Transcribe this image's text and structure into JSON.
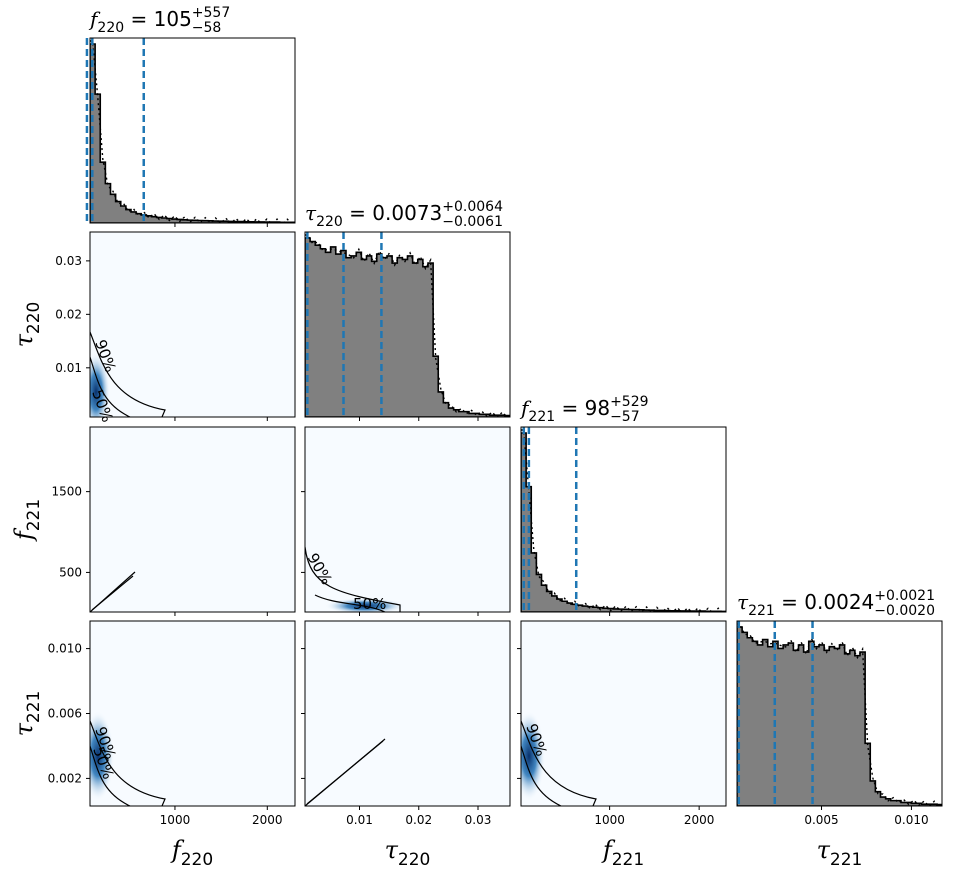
{
  "chart_data": {
    "type": "corner",
    "parameters": [
      {
        "symbol": "f",
        "sub": "220",
        "title_value": "105",
        "err_plus": "+557",
        "err_minus": "−58",
        "range": [
          80,
          2300
        ],
        "quantiles": [
          105,
          47,
          662
        ],
        "ticks": [
          "1000",
          "2000"
        ],
        "tick_values": [
          1000,
          2000
        ]
      },
      {
        "symbol": "τ",
        "sub": "220",
        "title_value": "0.0073",
        "err_plus": "+0.0064",
        "err_minus": "−0.0061",
        "range": [
          0.0008,
          0.0354
        ],
        "quantiles": [
          0.0073,
          0.0012,
          0.0137
        ],
        "ticks": [
          "0.01",
          "0.02",
          "0.03"
        ],
        "tick_values": [
          0.01,
          0.02,
          0.03
        ]
      },
      {
        "symbol": "f",
        "sub": "221",
        "title_value": "98",
        "err_plus": "+529",
        "err_minus": "−57",
        "range": [
          10,
          2300
        ],
        "quantiles": [
          98,
          41,
          627
        ],
        "ticks": [
          "500",
          "1500"
        ],
        "tick_values": [
          500,
          1500
        ],
        "x_ticks": [
          "1000",
          "2000"
        ],
        "x_tick_values": [
          1000,
          2000
        ]
      },
      {
        "symbol": "τ",
        "sub": "221",
        "title_value": "0.0024",
        "err_plus": "+0.0021",
        "err_minus": "−0.0020",
        "range": [
          0.0003,
          0.0117
        ],
        "quantiles": [
          0.0024,
          0.0004,
          0.0045
        ],
        "ticks": [
          "0.002",
          "0.006",
          "0.010"
        ],
        "tick_values": [
          0.002,
          0.006,
          0.01
        ],
        "x_ticks": [
          "0.005",
          "0.010"
        ],
        "x_tick_values": [
          0.005,
          0.01
        ]
      }
    ],
    "title_sep": " = ",
    "histograms": [
      [
        1.0,
        0.72,
        0.34,
        0.22,
        0.16,
        0.12,
        0.095,
        0.075,
        0.062,
        0.052,
        0.045,
        0.04,
        0.035,
        0.031,
        0.028,
        0.025,
        0.022,
        0.02,
        0.018,
        0.016,
        0.015,
        0.014,
        0.013,
        0.012,
        0.011,
        0.01,
        0.01,
        0.009,
        0.008,
        0.008,
        0.007,
        0.007,
        0.006,
        0.006,
        0.005,
        0.005,
        0.005,
        0.004,
        0.004,
        0.004
      ],
      [
        1.0,
        0.98,
        0.96,
        0.94,
        0.92,
        0.95,
        0.91,
        0.93,
        0.89,
        0.9,
        0.92,
        0.88,
        0.9,
        0.87,
        0.91,
        0.89,
        0.9,
        0.86,
        0.89,
        0.88,
        0.9,
        0.86,
        0.88,
        0.84,
        0.86,
        0.34,
        0.14,
        0.08,
        0.05,
        0.04,
        0.03,
        0.03,
        0.02,
        0.02,
        0.015,
        0.015,
        0.01,
        0.01,
        0.01,
        0.008
      ],
      [
        1.0,
        0.7,
        0.33,
        0.21,
        0.15,
        0.115,
        0.09,
        0.072,
        0.06,
        0.05,
        0.043,
        0.038,
        0.033,
        0.03,
        0.027,
        0.024,
        0.021,
        0.019,
        0.017,
        0.016,
        0.015,
        0.014,
        0.013,
        0.012,
        0.011,
        0.01,
        0.009,
        0.009,
        0.008,
        0.007,
        0.007,
        0.006,
        0.006,
        0.005,
        0.005,
        0.005,
        0.004,
        0.004,
        0.004,
        0.003
      ],
      [
        1.0,
        0.97,
        0.94,
        0.92,
        0.9,
        0.93,
        0.89,
        0.92,
        0.88,
        0.9,
        0.91,
        0.87,
        0.9,
        0.86,
        0.92,
        0.89,
        0.9,
        0.87,
        0.89,
        0.88,
        0.9,
        0.85,
        0.87,
        0.84,
        0.86,
        0.35,
        0.14,
        0.08,
        0.05,
        0.04,
        0.03,
        0.03,
        0.02,
        0.02,
        0.015,
        0.015,
        0.01,
        0.01,
        0.01,
        0.008
      ]
    ],
    "contour_labels": [
      "90%",
      "50%"
    ],
    "colors": {
      "hist_fill": "#808080",
      "quantile_line": "#1f77b4",
      "density_dark": "#08306b",
      "density_mid": "#2171b5",
      "density_light": "#f7fbff",
      "contour": "#000000"
    }
  }
}
